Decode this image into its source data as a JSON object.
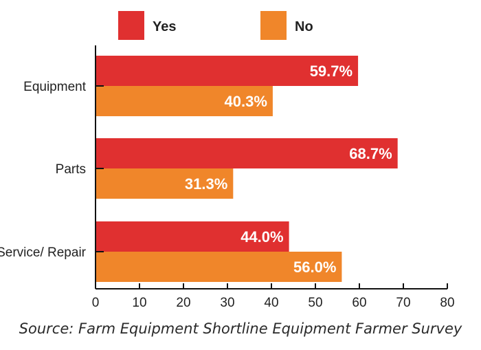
{
  "chart_data": {
    "type": "bar",
    "orientation": "horizontal",
    "categories": [
      "Equipment",
      "Parts",
      "Service/ Repair"
    ],
    "series": [
      {
        "name": "Yes",
        "values": [
          59.7,
          68.7,
          44.0
        ],
        "labels": [
          "59.7%",
          "68.7%",
          "44.0%"
        ],
        "color": "#e03030"
      },
      {
        "name": "No",
        "values": [
          40.3,
          31.3,
          56.0
        ],
        "labels": [
          "40.3%",
          "31.3%",
          "56.0%"
        ],
        "color": "#f0862a"
      }
    ],
    "xlim": [
      0,
      80
    ],
    "xticks": [
      "0",
      "10",
      "20",
      "30",
      "40",
      "50",
      "60",
      "70",
      "80"
    ],
    "legend_position": "top",
    "grid": false,
    "source": "Source: Farm Equipment Shortline Equipment Farmer Survey"
  }
}
